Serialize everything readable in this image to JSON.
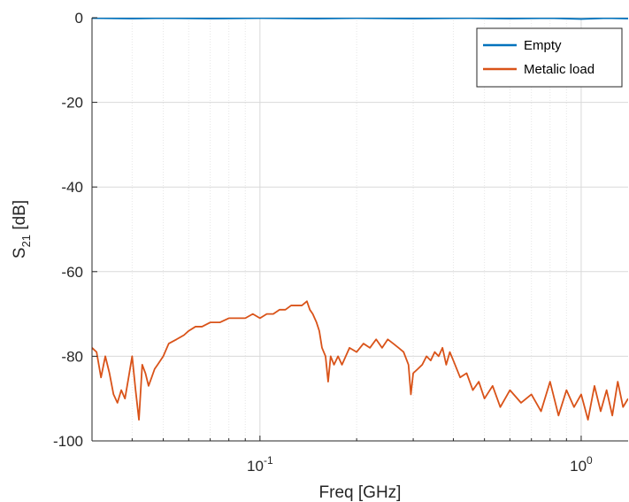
{
  "chart_data": {
    "type": "line",
    "title": "",
    "xlabel": "Freq [GHz]",
    "ylabel_main": "S",
    "ylabel_sub": "21",
    "ylabel_unit": " [dB]",
    "x_scale": "log",
    "xlim": [
      0.03,
      1.4
    ],
    "ylim": [
      -100,
      0
    ],
    "yticks": [
      {
        "value": 0,
        "label": "0"
      },
      {
        "value": -20,
        "label": "-20"
      },
      {
        "value": -40,
        "label": "-40"
      },
      {
        "value": -60,
        "label": "-60"
      },
      {
        "value": -80,
        "label": "-80"
      },
      {
        "value": -100,
        "label": "-100"
      }
    ],
    "xticks": [
      {
        "value": 0.1,
        "base": "10",
        "exp": "-1"
      },
      {
        "value": 1.0,
        "base": "10",
        "exp": "0"
      }
    ],
    "grid": true,
    "legend_position": "top-right",
    "series": [
      {
        "name": "Empty",
        "color": "#0072BD",
        "x": [
          0.03,
          0.04,
          0.05,
          0.07,
          0.1,
          0.15,
          0.2,
          0.3,
          0.45,
          0.6,
          0.8,
          1.0,
          1.2,
          1.4
        ],
        "y": [
          -0.1,
          -0.2,
          -0.1,
          -0.2,
          -0.1,
          -0.2,
          -0.1,
          -0.2,
          -0.1,
          -0.2,
          -0.1,
          -0.3,
          -0.1,
          -0.2
        ]
      },
      {
        "name": "Metalic load",
        "color": "#D95319",
        "x": [
          0.03,
          0.031,
          0.032,
          0.033,
          0.034,
          0.035,
          0.036,
          0.037,
          0.038,
          0.039,
          0.04,
          0.041,
          0.042,
          0.043,
          0.044,
          0.045,
          0.046,
          0.047,
          0.048,
          0.05,
          0.052,
          0.055,
          0.058,
          0.06,
          0.063,
          0.066,
          0.07,
          0.075,
          0.08,
          0.085,
          0.09,
          0.095,
          0.1,
          0.105,
          0.11,
          0.115,
          0.12,
          0.125,
          0.13,
          0.135,
          0.14,
          0.143,
          0.146,
          0.15,
          0.153,
          0.156,
          0.16,
          0.163,
          0.166,
          0.17,
          0.175,
          0.18,
          0.19,
          0.2,
          0.21,
          0.22,
          0.23,
          0.24,
          0.25,
          0.26,
          0.27,
          0.28,
          0.29,
          0.295,
          0.3,
          0.31,
          0.32,
          0.33,
          0.34,
          0.35,
          0.36,
          0.37,
          0.38,
          0.39,
          0.4,
          0.42,
          0.44,
          0.46,
          0.48,
          0.5,
          0.53,
          0.56,
          0.6,
          0.65,
          0.7,
          0.75,
          0.8,
          0.85,
          0.9,
          0.95,
          1.0,
          1.05,
          1.1,
          1.15,
          1.2,
          1.25,
          1.3,
          1.35,
          1.4
        ],
        "y": [
          -78,
          -79,
          -85,
          -80,
          -84,
          -89,
          -91,
          -88,
          -90,
          -85,
          -80,
          -88,
          -95,
          -82,
          -84,
          -87,
          -85,
          -83,
          -82,
          -80,
          -77,
          -76,
          -75,
          -74,
          -73,
          -73,
          -72,
          -72,
          -71,
          -71,
          -71,
          -70,
          -71,
          -70,
          -70,
          -69,
          -69,
          -68,
          -68,
          -68,
          -67,
          -69,
          -70,
          -72,
          -74,
          -78,
          -80,
          -86,
          -80,
          -82,
          -80,
          -82,
          -78,
          -79,
          -77,
          -78,
          -76,
          -78,
          -76,
          -77,
          -78,
          -79,
          -82,
          -89,
          -84,
          -83,
          -82,
          -80,
          -81,
          -79,
          -80,
          -78,
          -82,
          -79,
          -81,
          -85,
          -84,
          -88,
          -86,
          -90,
          -87,
          -92,
          -88,
          -91,
          -89,
          -93,
          -86,
          -94,
          -88,
          -92,
          -89,
          -95,
          -87,
          -93,
          -88,
          -94,
          -86,
          -92,
          -90
        ]
      }
    ]
  }
}
